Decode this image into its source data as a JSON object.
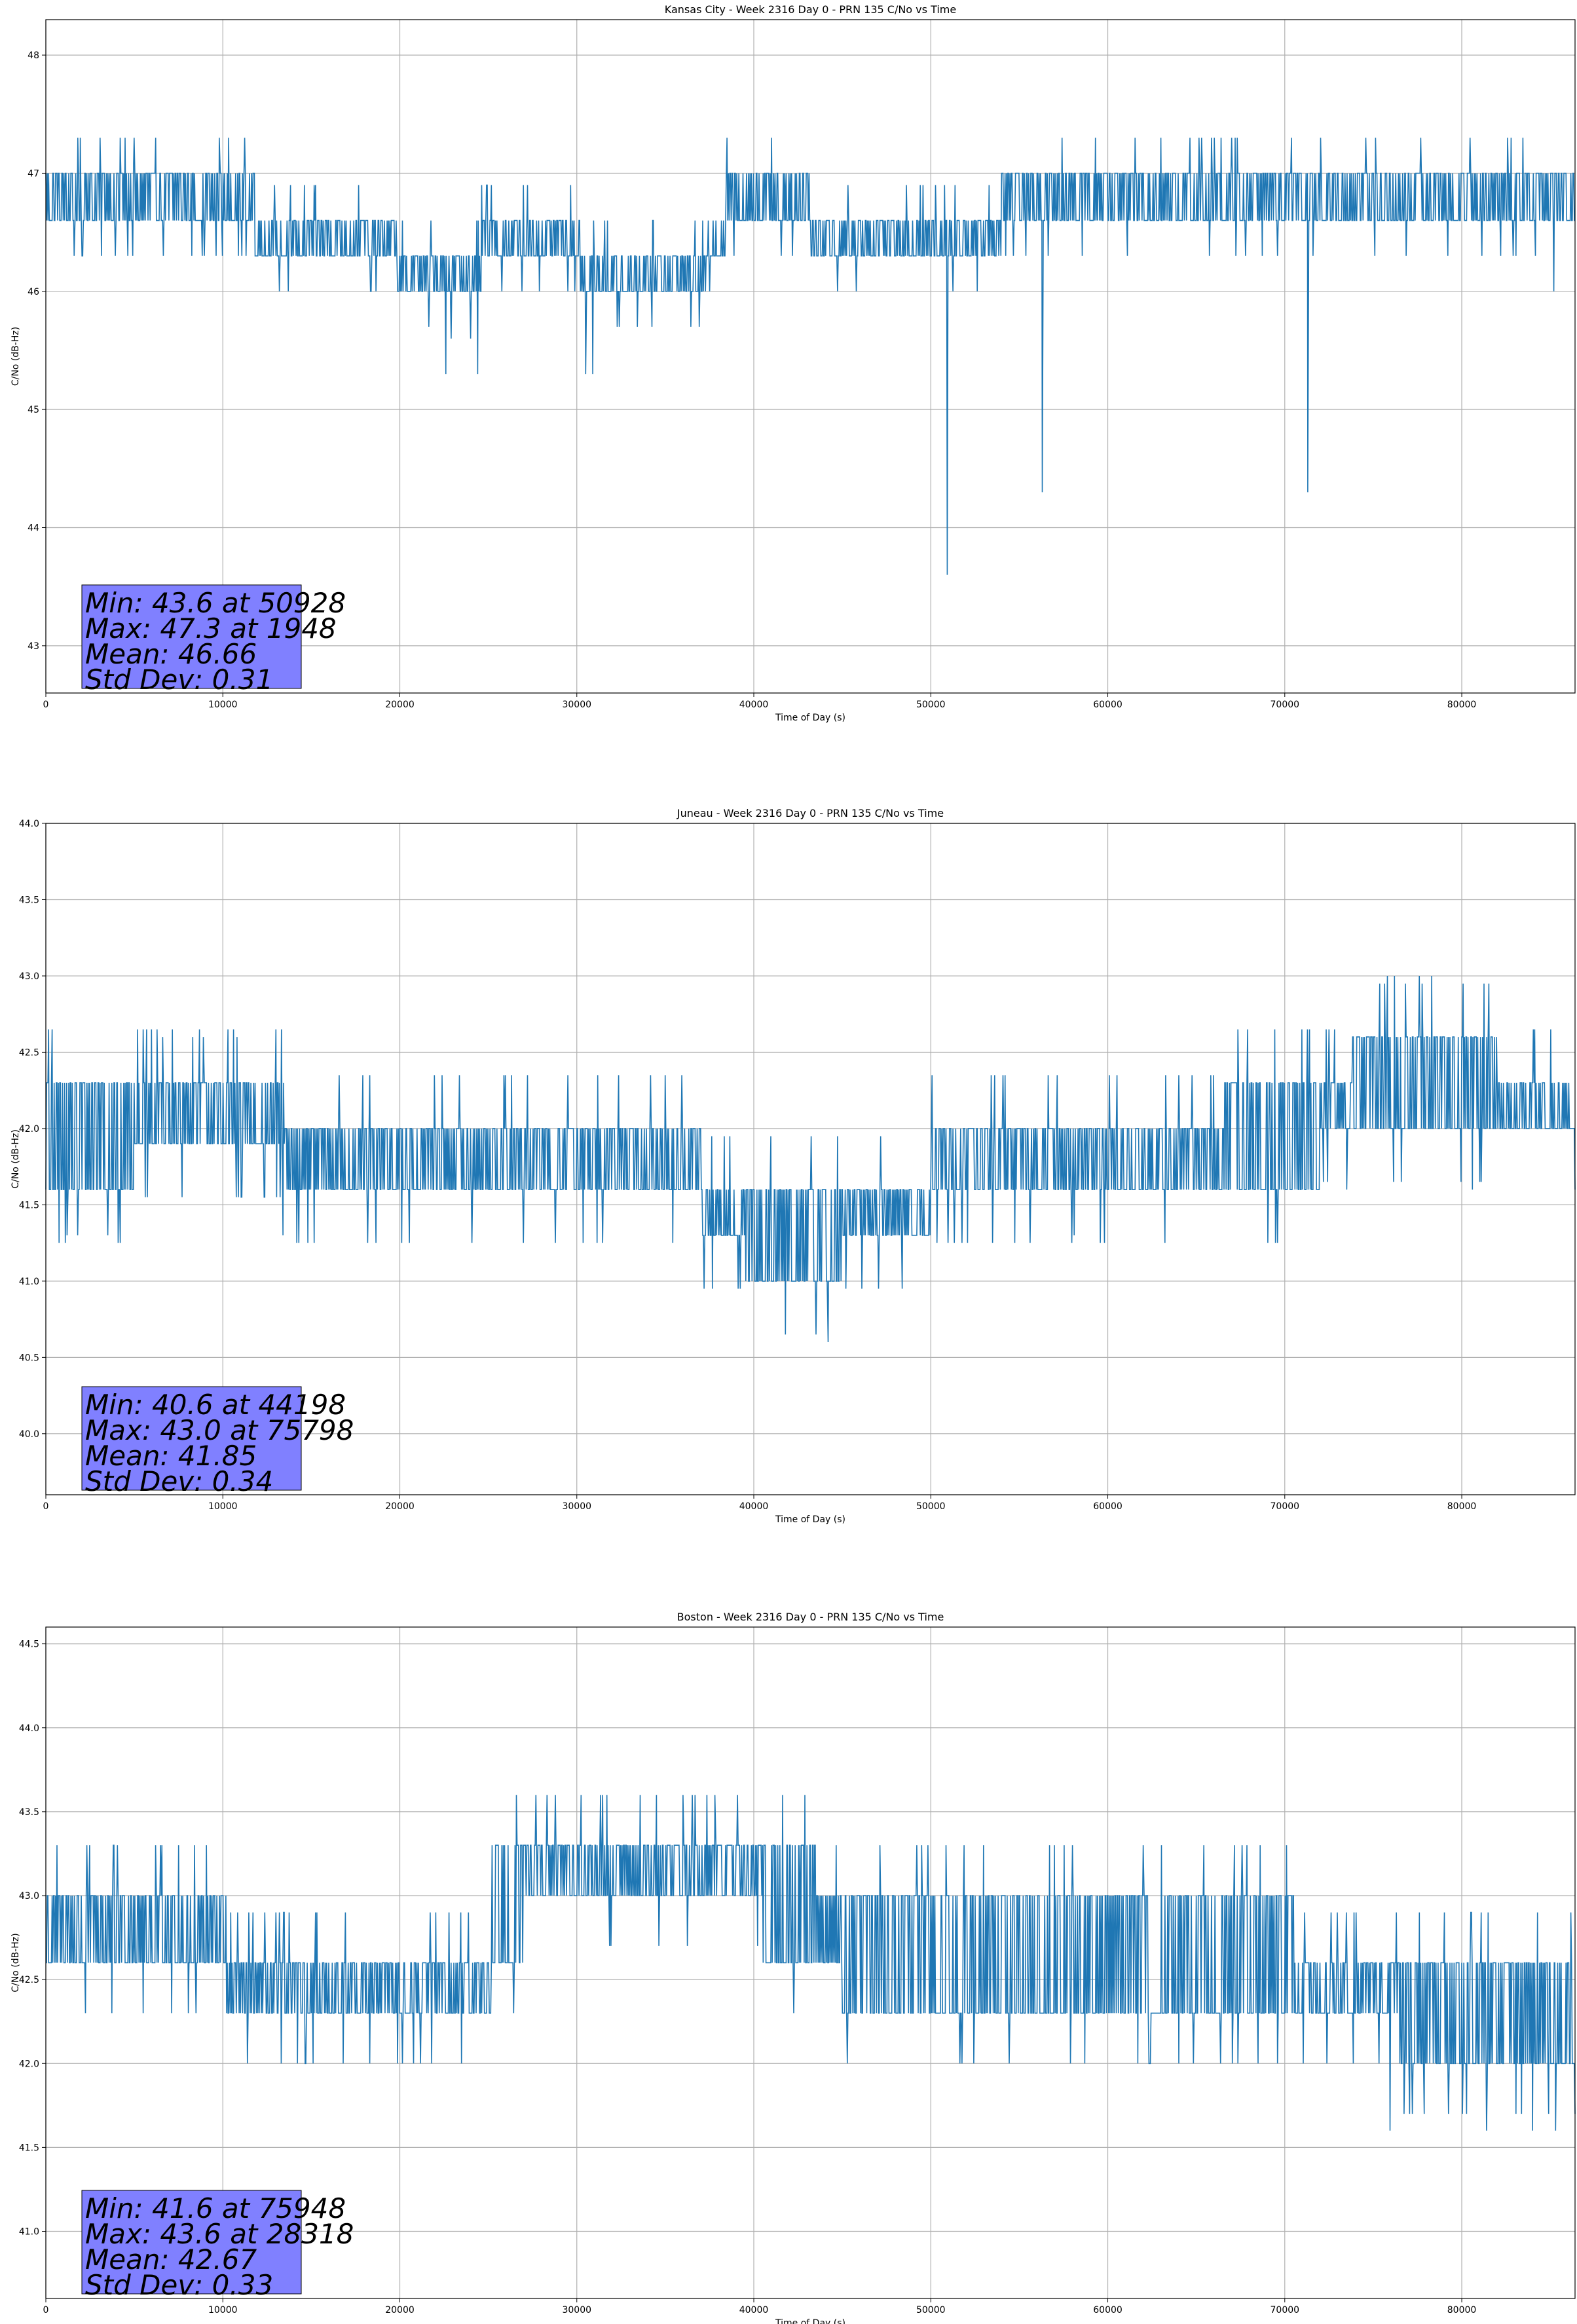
{
  "colors": {
    "line": "#1f77b4",
    "stats_box": "#8080ff",
    "grid": "#b0b0b0"
  },
  "chart_data": [
    {
      "type": "line",
      "title": "Kansas City - Week 2316 Day 0 - PRN 135 C/No vs Time",
      "xlabel": "Time of Day (s)",
      "ylabel": "C/No (dB-Hz)",
      "xlim": [
        0,
        86400
      ],
      "ylim": [
        42.6,
        48.3
      ],
      "xticks": [
        0,
        10000,
        20000,
        30000,
        40000,
        50000,
        60000,
        70000,
        80000
      ],
      "yticks": [
        43,
        44,
        45,
        46,
        47,
        48
      ],
      "ytick_decimals": 0,
      "grid": true,
      "quant": 0.3,
      "bands": [
        [
          0,
          46.6,
          47.0
        ],
        [
          11800,
          46.3,
          46.6
        ],
        [
          19800,
          46.0,
          46.3
        ],
        [
          22900,
          46.0,
          46.3
        ],
        [
          24600,
          46.3,
          46.6
        ],
        [
          30200,
          46.0,
          46.3
        ],
        [
          37400,
          46.3,
          46.6
        ],
        [
          38400,
          46.6,
          47.0
        ],
        [
          43200,
          46.3,
          46.6
        ],
        [
          54000,
          46.6,
          47.0
        ],
        [
          86400,
          46.6,
          47.0
        ]
      ],
      "spikes": [
        [
          1948,
          47.3
        ],
        [
          4200,
          47.3
        ],
        [
          9800,
          47.3
        ],
        [
          1600,
          46.3
        ],
        [
          13700,
          46.0
        ],
        [
          22600,
          45.3
        ],
        [
          22900,
          45.6
        ],
        [
          24000,
          45.6
        ],
        [
          24400,
          45.3
        ],
        [
          30500,
          45.3
        ],
        [
          30900,
          45.3
        ],
        [
          50928,
          43.6
        ],
        [
          56300,
          44.3
        ],
        [
          71300,
          44.3
        ],
        [
          82200,
          46.3
        ],
        [
          85200,
          46.0
        ],
        [
          63000,
          47.3
        ],
        [
          65300,
          47.3
        ],
        [
          66400,
          47.3
        ]
      ],
      "stats": [
        "Min: 43.6 at 50928",
        "Max: 47.3 at 1948",
        "Mean: 46.66",
        "Std Dev: 0.31"
      ]
    },
    {
      "type": "line",
      "title": "Juneau - Week 2316 Day 0 - PRN 135 C/No vs Time",
      "xlabel": "Time of Day (s)",
      "ylabel": "C/No (dB-Hz)",
      "xlim": [
        0,
        86400
      ],
      "ylim": [
        39.6,
        44.0
      ],
      "xticks": [
        0,
        10000,
        20000,
        30000,
        40000,
        50000,
        60000,
        70000,
        80000
      ],
      "yticks": [
        40.0,
        40.5,
        41.0,
        41.5,
        42.0,
        42.5,
        43.0,
        43.5,
        44.0
      ],
      "ytick_decimals": 1,
      "grid": true,
      "quant": 0.35,
      "bands": [
        [
          0,
          41.6,
          42.3
        ],
        [
          5000,
          41.9,
          42.3
        ],
        [
          13500,
          41.6,
          42.0
        ],
        [
          37000,
          41.3,
          41.6
        ],
        [
          39500,
          41.0,
          41.6
        ],
        [
          45000,
          41.3,
          41.6
        ],
        [
          50000,
          41.6,
          42.0
        ],
        [
          66600,
          41.6,
          42.3
        ],
        [
          72000,
          42.0,
          42.3
        ],
        [
          73800,
          42.0,
          42.6
        ],
        [
          82000,
          42.0,
          42.3
        ],
        [
          86400,
          41.6,
          42.3
        ]
      ],
      "spikes": [
        [
          6600,
          42.6
        ],
        [
          8300,
          42.6
        ],
        [
          8900,
          42.6
        ],
        [
          10800,
          42.6
        ],
        [
          1200,
          41.3
        ],
        [
          1800,
          41.3
        ],
        [
          3500,
          41.3
        ],
        [
          13400,
          41.3
        ],
        [
          44198,
          40.6
        ],
        [
          40200,
          41.0
        ],
        [
          75798,
          43.0
        ],
        [
          76200,
          43.0
        ],
        [
          77600,
          43.0
        ],
        [
          78300,
          43.0
        ],
        [
          58100,
          41.3
        ],
        [
          73500,
          41.6
        ],
        [
          80600,
          41.6
        ]
      ],
      "stats": [
        "Min: 40.6 at 44198",
        "Max: 43.0 at 75798",
        "Mean: 41.85",
        "Std Dev: 0.34"
      ]
    },
    {
      "type": "line",
      "title": "Boston - Week 2316 Day 0 - PRN 135 C/No vs Time",
      "xlabel": "Time of Day (s)",
      "ylabel": "C/No (dB-Hz)",
      "xlim": [
        0,
        86400
      ],
      "ylim": [
        40.6,
        44.6
      ],
      "xticks": [
        0,
        10000,
        20000,
        30000,
        40000,
        50000,
        60000,
        70000,
        80000
      ],
      "yticks": [
        41.0,
        41.5,
        42.0,
        42.5,
        43.0,
        43.5,
        44.0,
        44.5
      ],
      "ytick_decimals": 1,
      "grid": true,
      "quant": 0.3,
      "bands": [
        [
          0,
          42.6,
          43.0
        ],
        [
          10200,
          42.3,
          42.6
        ],
        [
          25200,
          42.6,
          43.3
        ],
        [
          27000,
          43.0,
          43.3
        ],
        [
          40500,
          42.6,
          43.3
        ],
        [
          43500,
          42.6,
          43.0
        ],
        [
          45000,
          42.3,
          43.0
        ],
        [
          70500,
          42.3,
          42.6
        ],
        [
          76500,
          42.0,
          42.6
        ],
        [
          86400,
          42.0,
          42.6
        ]
      ],
      "spikes": [
        [
          6200,
          43.3
        ],
        [
          7500,
          43.3
        ],
        [
          8400,
          43.3
        ],
        [
          28318,
          43.6
        ],
        [
          31700,
          43.6
        ],
        [
          34500,
          43.6
        ],
        [
          36000,
          43.6
        ],
        [
          37800,
          43.6
        ],
        [
          13300,
          42.0
        ],
        [
          15100,
          42.0
        ],
        [
          16800,
          42.0
        ],
        [
          58700,
          42.0
        ],
        [
          62000,
          43.3
        ],
        [
          75948,
          41.6
        ],
        [
          81400,
          41.6
        ],
        [
          84000,
          41.6
        ],
        [
          85300,
          41.6
        ]
      ],
      "stats": [
        "Min: 41.6 at 75948",
        "Max: 43.6 at 28318",
        "Mean: 42.67",
        "Std Dev: 0.33"
      ]
    }
  ]
}
